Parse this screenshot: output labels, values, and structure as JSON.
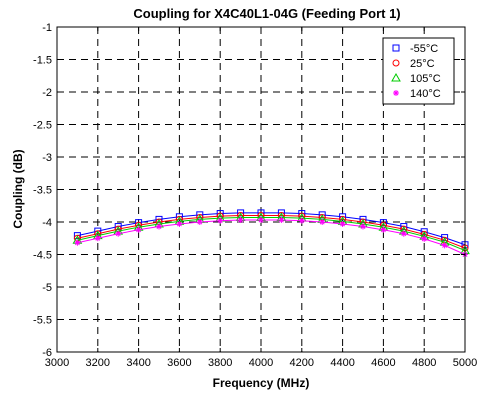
{
  "chart_data": {
    "type": "line",
    "title": "Coupling for X4C40L1-04G (Feeding Port 1)",
    "xlabel": "Frequency (MHz)",
    "ylabel": "Coupling (dB)",
    "xlim": [
      3000,
      5000
    ],
    "ylim": [
      -6,
      -1
    ],
    "xticks": [
      3000,
      3200,
      3400,
      3600,
      3800,
      4000,
      4200,
      4400,
      4600,
      4800,
      5000
    ],
    "yticks": [
      -6,
      -5.5,
      -5,
      -4.5,
      -4,
      -3.5,
      -3,
      -2.5,
      -2,
      -1.5,
      -1
    ],
    "grid": true,
    "legend_position": "top-right",
    "x": [
      3100,
      3200,
      3300,
      3400,
      3500,
      3600,
      3700,
      3800,
      3900,
      4000,
      4100,
      4200,
      4300,
      4400,
      4500,
      4600,
      4700,
      4800,
      4900,
      5000
    ],
    "series": [
      {
        "name": "-55°C",
        "color": "#0000ff",
        "marker": "square",
        "values": [
          -4.21,
          -4.14,
          -4.07,
          -4.01,
          -3.96,
          -3.92,
          -3.89,
          -3.87,
          -3.86,
          -3.86,
          -3.86,
          -3.87,
          -3.89,
          -3.92,
          -3.96,
          -4.01,
          -4.07,
          -4.15,
          -4.24,
          -4.35
        ]
      },
      {
        "name": "25°C",
        "color": "#ff0000",
        "marker": "circle",
        "values": [
          -4.25,
          -4.18,
          -4.11,
          -4.05,
          -4.0,
          -3.96,
          -3.93,
          -3.91,
          -3.9,
          -3.9,
          -3.9,
          -3.91,
          -3.93,
          -3.96,
          -4.0,
          -4.05,
          -4.11,
          -4.19,
          -4.28,
          -4.4
        ]
      },
      {
        "name": "105°C",
        "color": "#00cc00",
        "marker": "triangle",
        "values": [
          -4.28,
          -4.21,
          -4.14,
          -4.08,
          -4.03,
          -3.99,
          -3.96,
          -3.94,
          -3.93,
          -3.93,
          -3.93,
          -3.94,
          -3.96,
          -3.99,
          -4.03,
          -4.08,
          -4.14,
          -4.22,
          -4.31,
          -4.44
        ]
      },
      {
        "name": "140°C",
        "color": "#ff00ff",
        "marker": "star",
        "values": [
          -4.32,
          -4.25,
          -4.18,
          -4.12,
          -4.07,
          -4.03,
          -4.0,
          -3.98,
          -3.97,
          -3.97,
          -3.97,
          -3.98,
          -4.0,
          -4.03,
          -4.07,
          -4.12,
          -4.18,
          -4.26,
          -4.36,
          -4.5
        ]
      }
    ]
  }
}
